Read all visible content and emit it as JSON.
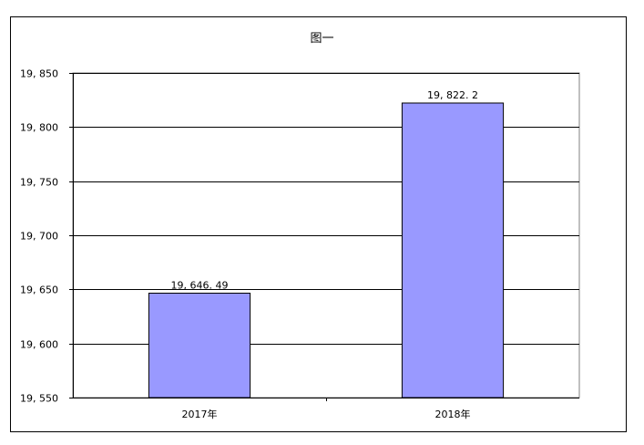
{
  "chart_data": {
    "type": "bar",
    "title": "图一",
    "categories": [
      "2017年",
      "2018年"
    ],
    "values": [
      19646.49,
      19822.2
    ],
    "data_labels": [
      "19, 646. 49",
      "19, 822. 2"
    ],
    "ylim": [
      19550,
      19850
    ],
    "yticks": [
      19550,
      19600,
      19650,
      19700,
      19750,
      19800,
      19850
    ],
    "ytick_labels": [
      "19, 550",
      "19, 600",
      "19, 650",
      "19, 700",
      "19, 750",
      "19, 800",
      "19, 850"
    ],
    "grid": true,
    "bar_color": "#9999ff",
    "xlabel": "",
    "ylabel": ""
  }
}
